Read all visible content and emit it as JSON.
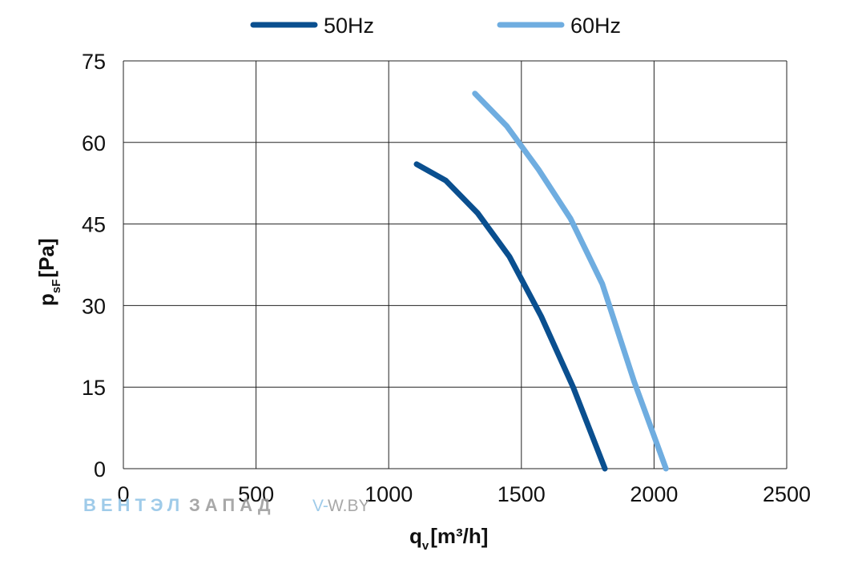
{
  "chart_data": {
    "type": "line",
    "xlabel_main": "q",
    "xlabel_sub": "v",
    "xlabel_unit": "[m³/h]",
    "ylabel_main": "p",
    "ylabel_sub": "sF",
    "ylabel_unit": "[Pa]",
    "xlim": [
      0,
      2500
    ],
    "ylim": [
      0,
      75
    ],
    "x_ticks": [
      0,
      500,
      1000,
      1500,
      2000,
      2500
    ],
    "y_ticks": [
      0,
      15,
      30,
      45,
      60,
      75
    ],
    "x_tick_labels": [
      "0",
      "500",
      "1000",
      "1500",
      "2000",
      "2500"
    ],
    "y_tick_labels": [
      "0",
      "15",
      "30",
      "45",
      "60",
      "75"
    ],
    "grid": true,
    "legend_position": "top-center",
    "series": [
      {
        "name": "50Hz",
        "color": "#0a4f8f",
        "points": [
          [
            1105,
            56
          ],
          [
            1215,
            53
          ],
          [
            1335,
            47
          ],
          [
            1455,
            39
          ],
          [
            1575,
            28
          ],
          [
            1695,
            15
          ],
          [
            1815,
            0
          ]
        ]
      },
      {
        "name": "60Hz",
        "color": "#6fade0",
        "points": [
          [
            1325,
            69
          ],
          [
            1445,
            63
          ],
          [
            1565,
            55
          ],
          [
            1685,
            46
          ],
          [
            1805,
            34
          ],
          [
            1925,
            16
          ],
          [
            2045,
            0
          ]
        ]
      }
    ]
  },
  "legend": {
    "items": [
      "50Hz",
      "60Hz"
    ]
  },
  "watermark": {
    "part1": "ВЕНТЭЛ",
    "part2": "ЗАПАД",
    "site_v": "V-",
    "site_rest": "W.BY"
  }
}
